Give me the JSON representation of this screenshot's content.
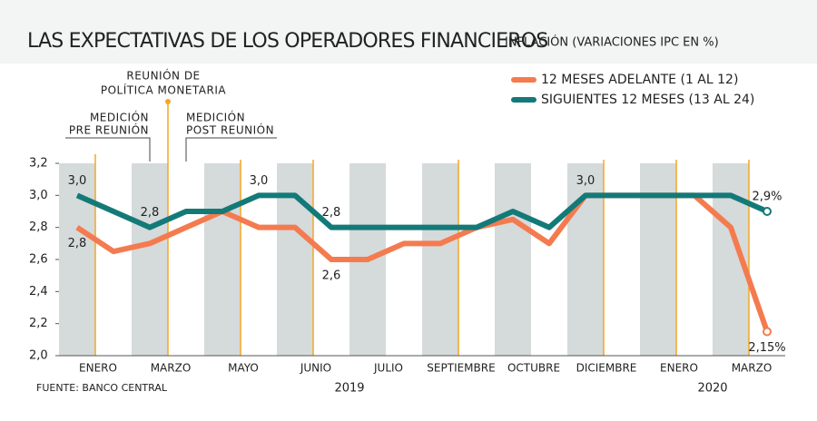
{
  "chart_data": {
    "type": "line",
    "title": "LAS EXPECTATIVAS DE LOS OPERADORES FINANCIEROS",
    "subtitle": "INFLACIÓN (VARIACIONES IPC EN %)",
    "categories": [
      "ENERO",
      null,
      "MARZO",
      null,
      "MAYO",
      null,
      "JUNIO",
      null,
      "JULIO",
      null,
      "SEPTIEMBRE",
      null,
      "OCTUBRE",
      null,
      "DICIEMBRE",
      null,
      "ENERO",
      null,
      "MARZO",
      null
    ],
    "years": [
      "2019",
      "2020"
    ],
    "series": [
      {
        "name": "12 MESES ADELANTE (1 AL 12)",
        "color": "#f47b4f",
        "values": [
          2.8,
          2.65,
          2.7,
          2.8,
          2.9,
          2.8,
          2.8,
          2.6,
          2.6,
          2.7,
          2.7,
          2.8,
          2.85,
          2.7,
          3.0,
          3.0,
          3.0,
          3.0,
          2.8,
          2.15
        ],
        "value_labels": [
          "2,8",
          null,
          null,
          null,
          null,
          null,
          null,
          "2,6",
          null,
          null,
          null,
          null,
          null,
          null,
          null,
          null,
          null,
          null,
          null,
          "2,15%"
        ]
      },
      {
        "name": "SIGUIENTES 12 MESES (13 AL 24)",
        "color": "#137a78",
        "values": [
          3.0,
          2.9,
          2.8,
          2.9,
          2.9,
          3.0,
          3.0,
          2.8,
          2.8,
          2.8,
          2.8,
          2.8,
          2.9,
          2.8,
          3.0,
          3.0,
          3.0,
          3.0,
          3.0,
          2.9
        ],
        "value_labels": [
          "3,0",
          null,
          "2,8",
          null,
          null,
          "3,0",
          null,
          "2,8",
          null,
          null,
          null,
          null,
          null,
          null,
          "3,0",
          null,
          null,
          null,
          null,
          "2,9%"
        ]
      }
    ],
    "ylim": [
      2.0,
      3.2
    ],
    "yticks": [
      {
        "value": 2.0,
        "label": "2,0"
      },
      {
        "value": 2.2,
        "label": "2,2"
      },
      {
        "value": 2.4,
        "label": "2,4"
      },
      {
        "value": 2.6,
        "label": "2,6"
      },
      {
        "value": 2.8,
        "label": "2,8"
      },
      {
        "value": 3.0,
        "label": "3,0"
      },
      {
        "value": 3.2,
        "label": "3,2"
      }
    ],
    "annotations": {
      "meeting": [
        "REUNIÓN DE",
        "POLÍTICA MONETARIA"
      ],
      "pre": [
        "MEDICIÓN",
        "PRE REUNIÓN"
      ],
      "post": [
        "MEDICIÓN",
        "POST REUNIÓN"
      ]
    },
    "source": "FUENTE: BANCO CENTRAL",
    "legend": "top-right"
  }
}
